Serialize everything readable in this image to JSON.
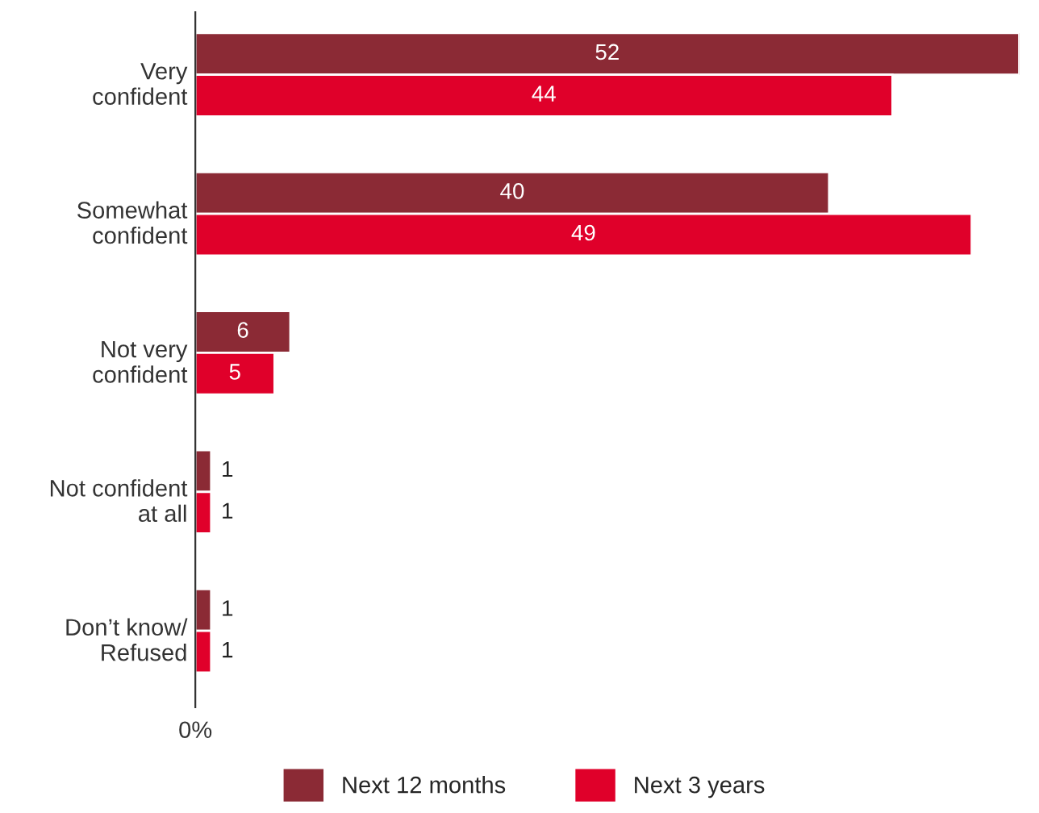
{
  "chart_data": {
    "type": "bar",
    "orientation": "horizontal",
    "categories": [
      "Very\nconfident",
      "Somewhat\nconfident",
      "Not very\nconfident",
      "Not confident\nat all",
      "Don’t know/\nRefused"
    ],
    "series": [
      {
        "name": "Next 12 months",
        "color": "#8b2a35",
        "values": [
          52,
          40,
          6,
          1,
          1
        ]
      },
      {
        "name": "Next 3 years",
        "color": "#e0002a",
        "values": [
          44,
          49,
          5,
          1,
          1
        ]
      }
    ],
    "xlim": [
      0,
      52
    ],
    "annotations": [
      "0%"
    ],
    "data_labels": true,
    "legend": "bottom",
    "grid": false
  }
}
